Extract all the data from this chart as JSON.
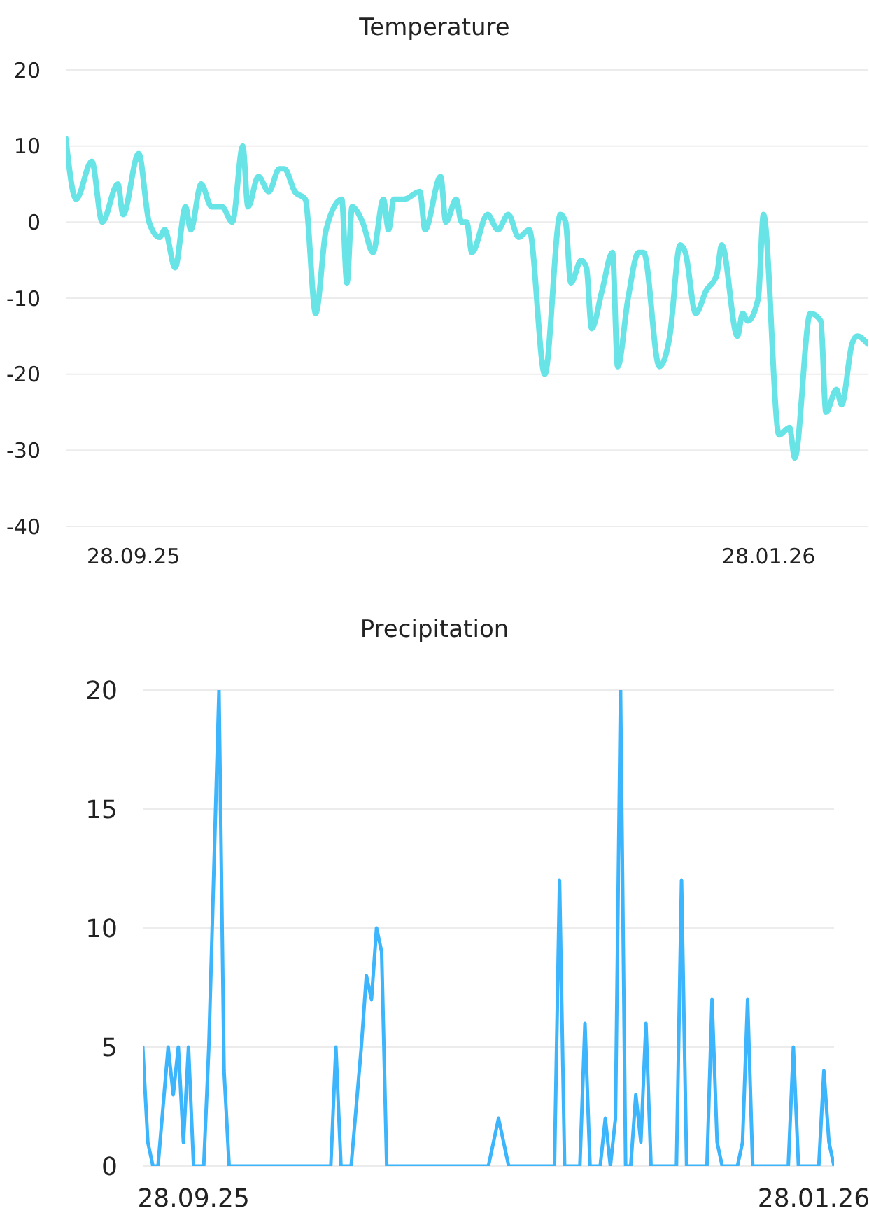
{
  "chart_data": [
    {
      "type": "line",
      "title": "Temperature",
      "x": [
        "2025-09-15",
        "2025-09-17",
        "2025-09-20",
        "2025-09-22",
        "2025-09-25",
        "2025-09-26",
        "2025-09-29",
        "2025-10-01",
        "2025-10-03",
        "2025-10-04",
        "2025-10-06",
        "2025-10-08",
        "2025-10-09",
        "2025-10-11",
        "2025-10-13",
        "2025-10-15",
        "2025-10-17",
        "2025-10-19",
        "2025-10-20",
        "2025-10-22",
        "2025-10-24",
        "2025-10-26",
        "2025-10-27",
        "2025-10-29",
        "2025-10-31",
        "2025-11-02",
        "2025-11-04",
        "2025-11-07",
        "2025-11-08",
        "2025-11-09",
        "2025-11-11",
        "2025-11-13",
        "2025-11-15",
        "2025-11-16",
        "2025-11-17",
        "2025-11-19",
        "2025-11-22",
        "2025-11-23",
        "2025-11-26",
        "2025-11-27",
        "2025-11-29",
        "2025-11-30",
        "2025-12-01",
        "2025-12-02",
        "2025-12-05",
        "2025-12-07",
        "2025-12-09",
        "2025-12-11",
        "2025-12-13",
        "2025-12-16",
        "2025-12-19",
        "2025-12-20",
        "2025-12-21",
        "2025-12-23",
        "2025-12-24",
        "2025-12-25",
        "2025-12-27",
        "2025-12-29",
        "2025-12-30",
        "2026-01-01",
        "2026-01-03",
        "2026-01-04",
        "2026-01-07",
        "2026-01-09",
        "2026-01-11",
        "2026-01-12",
        "2026-01-14",
        "2026-01-16",
        "2026-01-18",
        "2026-01-19",
        "2026-01-22",
        "2026-01-23",
        "2026-01-24",
        "2026-01-26",
        "2026-01-27",
        "2026-01-30",
        "2026-02-01",
        "2026-02-02",
        "2026-02-05",
        "2026-02-07",
        "2026-02-08",
        "2026-02-10",
        "2026-02-11",
        "2026-02-13",
        "2026-02-14",
        "2026-02-16"
      ],
      "series": [
        {
          "color": "#68e4e6",
          "values": [
            11,
            3,
            8,
            0,
            5,
            1,
            9,
            0,
            -2,
            -1,
            -6,
            2,
            -1,
            5,
            2,
            2,
            0,
            10,
            2,
            6,
            4,
            7,
            7,
            4,
            3,
            -12,
            -1,
            3,
            -8,
            2,
            0,
            -4,
            3,
            -1,
            3,
            3,
            4,
            -1,
            6,
            0,
            3,
            0,
            0,
            -4,
            1,
            -1,
            1,
            -2,
            -1,
            -20,
            1,
            0,
            -8,
            -5,
            -6,
            -14,
            -9,
            -4,
            -19,
            -10,
            -4,
            -4,
            -19,
            -15,
            -3,
            -4,
            -12,
            -9,
            -7,
            -3,
            -15,
            -12,
            -13,
            -10,
            1,
            -28,
            -27,
            -31,
            -12,
            -13,
            -25,
            -22,
            -24,
            -16,
            -15,
            -16
          ]
        }
      ],
      "xlim": [
        "2025-09-15",
        "2026-02-16"
      ],
      "xticks": [
        {
          "value": "2025-09-28",
          "label": "28.09.25"
        },
        {
          "value": "2026-01-28",
          "label": "28.01.26"
        }
      ],
      "ylim": [
        -40,
        20
      ],
      "yticks": [
        -40,
        -30,
        -20,
        -10,
        0,
        10,
        20
      ],
      "grid": "y",
      "marker": "none",
      "line_style": "solid"
    },
    {
      "type": "line",
      "title": "Precipitation",
      "x": [
        "2025-09-18",
        "2025-09-19",
        "2025-09-20",
        "2025-09-21",
        "2025-09-23",
        "2025-09-24",
        "2025-09-25",
        "2025-09-26",
        "2025-09-27",
        "2025-09-28",
        "2025-09-30",
        "2025-10-01",
        "2025-10-03",
        "2025-10-04",
        "2025-10-05",
        "2025-10-25",
        "2025-10-26",
        "2025-10-27",
        "2025-10-29",
        "2025-10-31",
        "2025-11-01",
        "2025-11-02",
        "2025-11-03",
        "2025-11-04",
        "2025-11-05",
        "2025-11-25",
        "2025-11-27",
        "2025-11-29",
        "2025-12-08",
        "2025-12-09",
        "2025-12-10",
        "2025-12-13",
        "2025-12-14",
        "2025-12-15",
        "2025-12-17",
        "2025-12-18",
        "2025-12-19",
        "2025-12-20",
        "2025-12-21",
        "2025-12-22",
        "2025-12-23",
        "2025-12-24",
        "2025-12-25",
        "2025-12-26",
        "2025-12-27",
        "2026-01-01",
        "2026-01-02",
        "2026-01-03",
        "2026-01-07",
        "2026-01-08",
        "2026-01-09",
        "2026-01-10",
        "2026-01-13",
        "2026-01-14",
        "2026-01-15",
        "2026-01-16",
        "2026-01-23",
        "2026-01-24",
        "2026-01-25",
        "2026-01-29",
        "2026-01-30",
        "2026-01-31",
        "2026-02-01"
      ],
      "series": [
        {
          "color": "#3db5fc",
          "values": [
            5,
            1,
            0,
            0,
            5,
            3,
            5,
            1,
            5,
            0,
            0,
            5,
            20,
            4,
            0,
            0,
            5,
            0,
            0,
            5,
            8,
            7,
            10,
            9,
            0,
            0,
            2,
            0,
            0,
            12,
            0,
            0,
            6,
            0,
            0,
            2,
            0,
            2,
            20,
            0,
            0,
            3,
            1,
            6,
            0,
            0,
            12,
            0,
            0,
            7,
            1,
            0,
            0,
            1,
            7,
            0,
            0,
            5,
            0,
            0,
            4,
            1,
            0
          ]
        }
      ],
      "xlim": [
        "2025-09-18",
        "2026-02-01"
      ],
      "xticks": [
        {
          "value": "2025-09-28",
          "label": "28.09.25"
        },
        {
          "value": "2026-01-28",
          "label": "28.01.26"
        }
      ],
      "ylim": [
        0,
        20
      ],
      "yticks": [
        0,
        5,
        10,
        15,
        20
      ],
      "grid": "y",
      "marker": "none",
      "line_style": "solid"
    }
  ]
}
